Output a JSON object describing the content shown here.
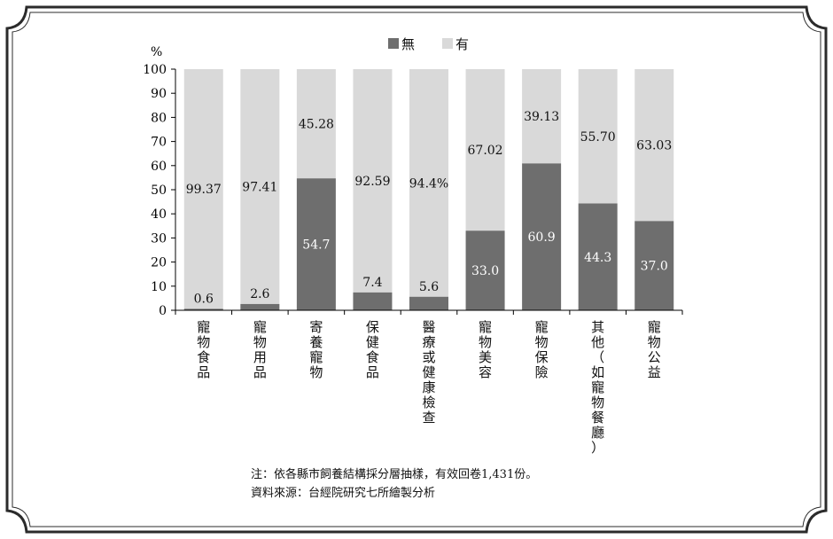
{
  "chart_data": {
    "type": "bar",
    "stacked": true,
    "y_unit_label": "%",
    "ylim": [
      0,
      100
    ],
    "yticks": [
      0,
      10,
      20,
      30,
      40,
      50,
      60,
      70,
      80,
      90,
      100
    ],
    "legend_position": "top-center",
    "categories": [
      "寵物食品",
      "寵物用品",
      "寄養寵物",
      "保健食品",
      "醫療或健康檢查",
      "寵物美容",
      "寵物保險",
      "其他（如寵物餐廳）",
      "寵物公益"
    ],
    "series": [
      {
        "name": "無",
        "color": "#6e6e6e",
        "values": [
          0.6,
          2.6,
          54.7,
          7.4,
          5.6,
          33.0,
          60.9,
          44.3,
          37.0
        ],
        "labels": [
          "0.6",
          "2.6",
          "54.7",
          "7.4",
          "5.6",
          "33.0",
          "60.9",
          "44.3",
          "37.0"
        ]
      },
      {
        "name": "有",
        "color": "#d9d9d9",
        "values": [
          99.37,
          97.41,
          45.28,
          92.59,
          94.4,
          67.02,
          39.13,
          55.7,
          63.03
        ],
        "labels": [
          "99.37",
          "97.41",
          "45.28",
          "92.59",
          "94.4%",
          "67.02",
          "39.13",
          "55.70",
          "63.03"
        ]
      }
    ]
  },
  "notes": {
    "line1": "注：依各縣市飼養結構採分層抽樣，有效回卷1,431份。",
    "line2": "資料來源：台經院研究七所繪製分析"
  }
}
